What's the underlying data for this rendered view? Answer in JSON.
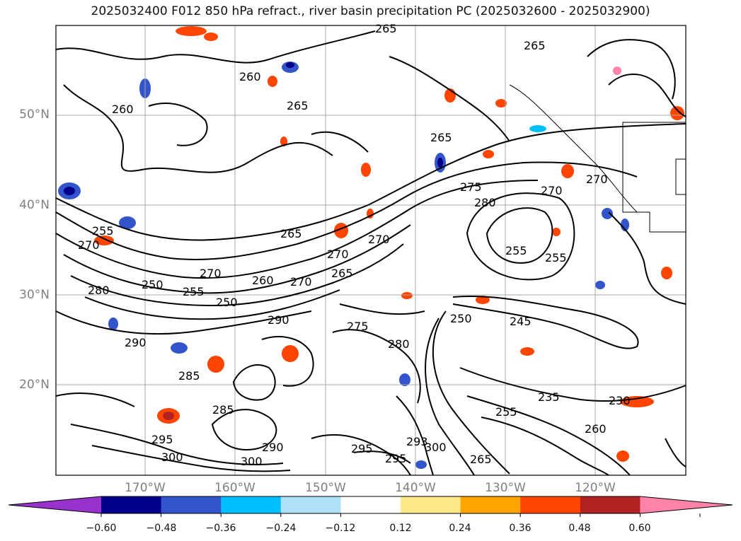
{
  "title": "2025032400 F012 850 hPa refract., river basin precipitation PC (2025032600 - 2025032900)",
  "map": {
    "lat_labels": [
      "50°N",
      "40°N",
      "30°N",
      "20°N"
    ],
    "lon_labels": [
      "170°W",
      "160°W",
      "150°W",
      "140°W",
      "130°W",
      "120°W"
    ],
    "contour_labels": [
      "265",
      "260",
      "265",
      "260",
      "265",
      "265",
      "270",
      "275",
      "280",
      "270",
      "265",
      "255",
      "270",
      "280",
      "250",
      "255",
      "270",
      "260",
      "270",
      "250",
      "290",
      "265",
      "270",
      "270",
      "255",
      "255",
      "275",
      "280",
      "250",
      "245",
      "235",
      "230",
      "285",
      "290",
      "285",
      "295",
      "300",
      "300",
      "290",
      "295",
      "295",
      "293",
      "300",
      "265",
      "255",
      "260"
    ]
  },
  "colorbar": {
    "ticks": [
      "−0.60",
      "−0.48",
      "−0.36",
      "−0.24",
      "−0.12",
      "0.12",
      "0.24",
      "0.36",
      "0.48",
      "0.60"
    ],
    "colors": [
      "#9932cc",
      "#00008b",
      "#3355cc",
      "#00bfff",
      "#aee0f8",
      "#ffffff",
      "#fde98a",
      "#ffa500",
      "#ff4500",
      "#b22222",
      "#ff82a9"
    ]
  }
}
